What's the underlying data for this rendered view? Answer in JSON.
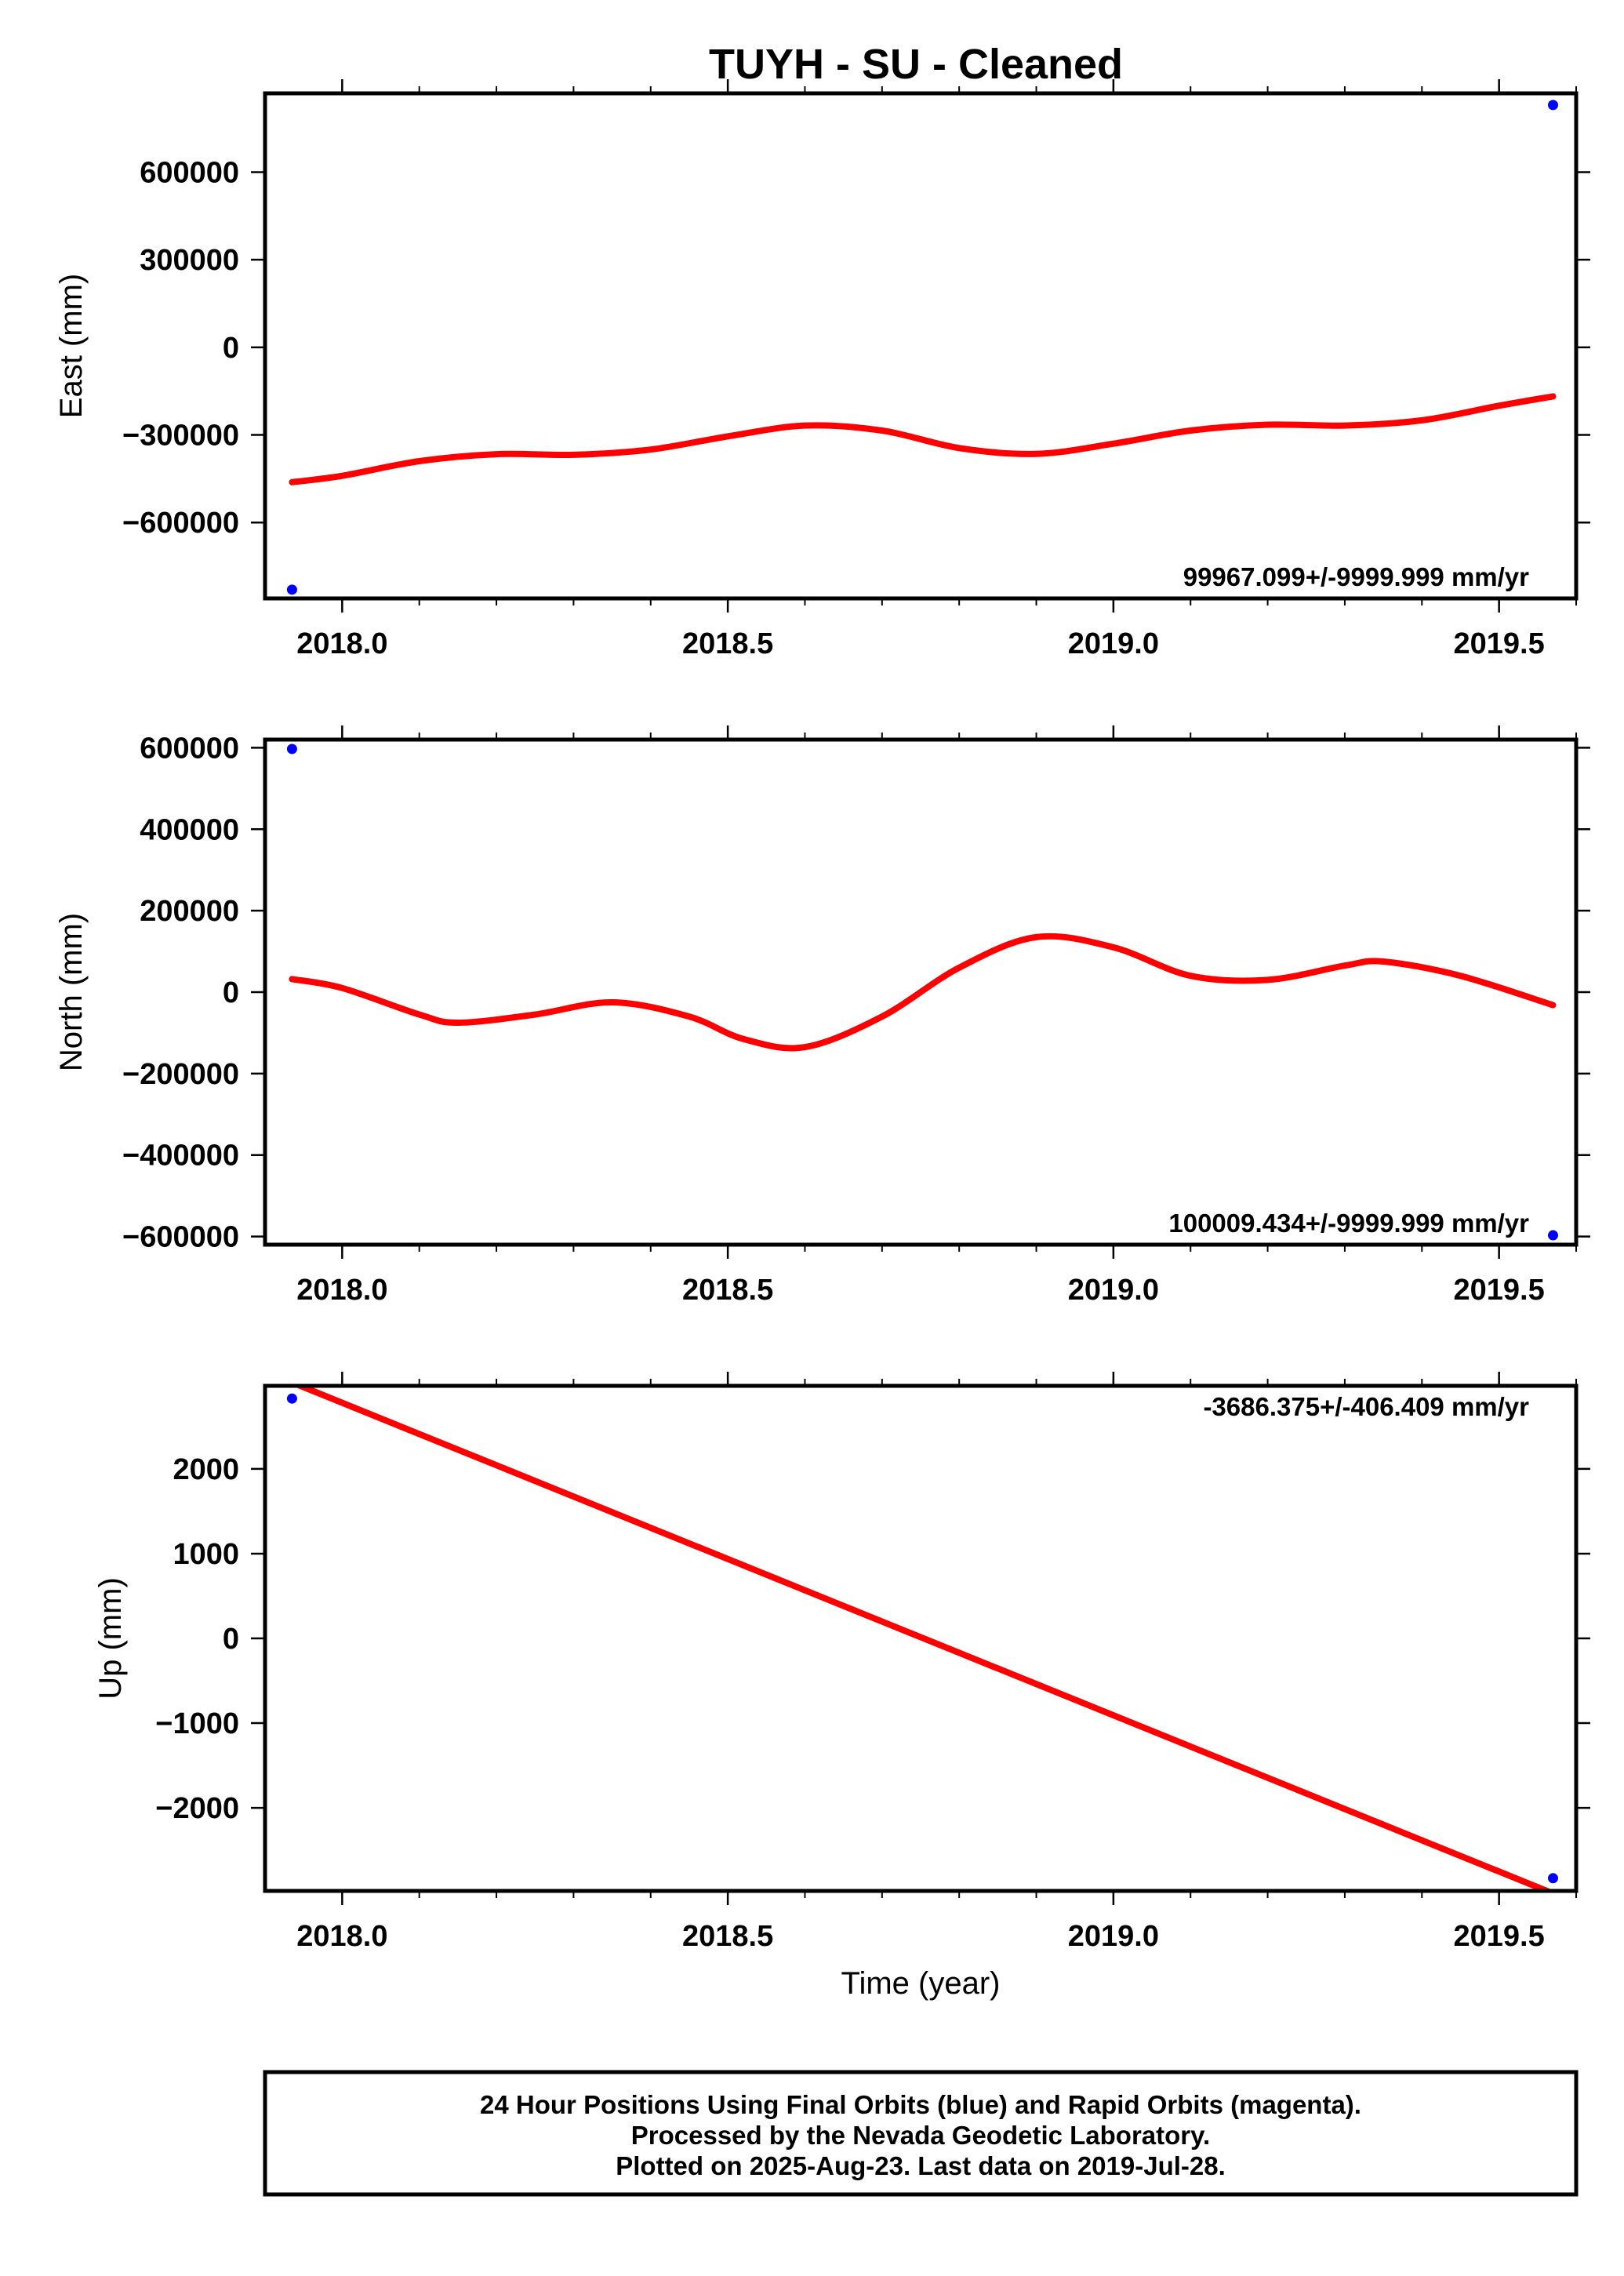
{
  "title": "TUYH  - SU - Cleaned",
  "footer": {
    "lines": [
      "24 Hour Positions Using Final Orbits (blue) and Rapid Orbits (magenta).",
      "Processed by the Nevada Geodetic Laboratory.",
      "Plotted on 2025-Aug-23. Last data on 2019-Jul-28."
    ]
  },
  "colors": {
    "data": "#0000ff",
    "fit": "#ff0000",
    "axis": "#000000"
  },
  "chart_data": [
    {
      "type": "line",
      "ylabel": "East (mm)",
      "xlabel": "",
      "xlim": [
        2017.9,
        2019.6
      ],
      "ylim": [
        -860000,
        870000
      ],
      "xticks": [
        2018.0,
        2018.5,
        2019.0,
        2019.5
      ],
      "xtick_labels": [
        "2018.0",
        "2018.5",
        "2019.0",
        "2019.5"
      ],
      "yticks": [
        600000,
        300000,
        0,
        -300000,
        -600000
      ],
      "ytick_labels": [
        "600000",
        "300000",
        "0",
        "−300000",
        "−600000"
      ],
      "rate_label": "99967.099+/-9999.999 mm/yr",
      "data_points": [
        [
          2017.935,
          -830000
        ],
        [
          2019.57,
          830000
        ]
      ],
      "fit_line": [
        [
          2017.935,
          -462000
        ],
        [
          2018.0,
          -440000
        ],
        [
          2018.1,
          -390000
        ],
        [
          2018.2,
          -366000
        ],
        [
          2018.3,
          -368000
        ],
        [
          2018.4,
          -350000
        ],
        [
          2018.5,
          -305000
        ],
        [
          2018.6,
          -268000
        ],
        [
          2018.7,
          -285000
        ],
        [
          2018.8,
          -345000
        ],
        [
          2018.9,
          -365000
        ],
        [
          2019.0,
          -330000
        ],
        [
          2019.1,
          -285000
        ],
        [
          2019.2,
          -265000
        ],
        [
          2019.3,
          -268000
        ],
        [
          2019.4,
          -250000
        ],
        [
          2019.5,
          -200000
        ],
        [
          2019.57,
          -168000
        ]
      ]
    },
    {
      "type": "line",
      "ylabel": "North (mm)",
      "xlabel": "",
      "xlim": [
        2017.9,
        2019.6
      ],
      "ylim": [
        -620000,
        620000
      ],
      "xticks": [
        2018.0,
        2018.5,
        2019.0,
        2019.5
      ],
      "xtick_labels": [
        "2018.0",
        "2018.5",
        "2019.0",
        "2019.5"
      ],
      "yticks": [
        600000,
        400000,
        200000,
        0,
        -200000,
        -400000,
        -600000
      ],
      "ytick_labels": [
        "600000",
        "400000",
        "200000",
        "0",
        "−200000",
        "−400000",
        "−600000"
      ],
      "rate_label": "100009.434+/-9999.999 mm/yr",
      "data_points": [
        [
          2017.935,
          597000
        ],
        [
          2019.57,
          -597000
        ]
      ],
      "fit_line": [
        [
          2017.935,
          32000
        ],
        [
          2018.0,
          10000
        ],
        [
          2018.1,
          -55000
        ],
        [
          2018.15,
          -75000
        ],
        [
          2018.25,
          -55000
        ],
        [
          2018.35,
          -25000
        ],
        [
          2018.45,
          -60000
        ],
        [
          2018.52,
          -115000
        ],
        [
          2018.6,
          -135000
        ],
        [
          2018.7,
          -60000
        ],
        [
          2018.8,
          60000
        ],
        [
          2018.9,
          135000
        ],
        [
          2019.0,
          110000
        ],
        [
          2019.1,
          40000
        ],
        [
          2019.2,
          30000
        ],
        [
          2019.3,
          65000
        ],
        [
          2019.35,
          75000
        ],
        [
          2019.45,
          40000
        ],
        [
          2019.57,
          -32000
        ]
      ]
    },
    {
      "type": "line",
      "ylabel": "Up (mm)",
      "xlabel": "Time (year)",
      "xlim": [
        2017.9,
        2019.6
      ],
      "ylim": [
        -2980,
        2980
      ],
      "xticks": [
        2018.0,
        2018.5,
        2019.0,
        2019.5
      ],
      "xtick_labels": [
        "2018.0",
        "2018.5",
        "2019.0",
        "2019.5"
      ],
      "yticks": [
        2000,
        1000,
        0,
        -1000,
        -2000
      ],
      "ytick_labels": [
        "2000",
        "1000",
        "0",
        "−1000",
        "−2000"
      ],
      "rate_label": "-3686.375+/-406.409 mm/yr",
      "data_points": [
        [
          2017.935,
          2830
        ],
        [
          2019.57,
          -2830
        ]
      ],
      "fit_line": [
        [
          2017.935,
          3020
        ],
        [
          2019.57,
          -3010
        ]
      ]
    }
  ]
}
